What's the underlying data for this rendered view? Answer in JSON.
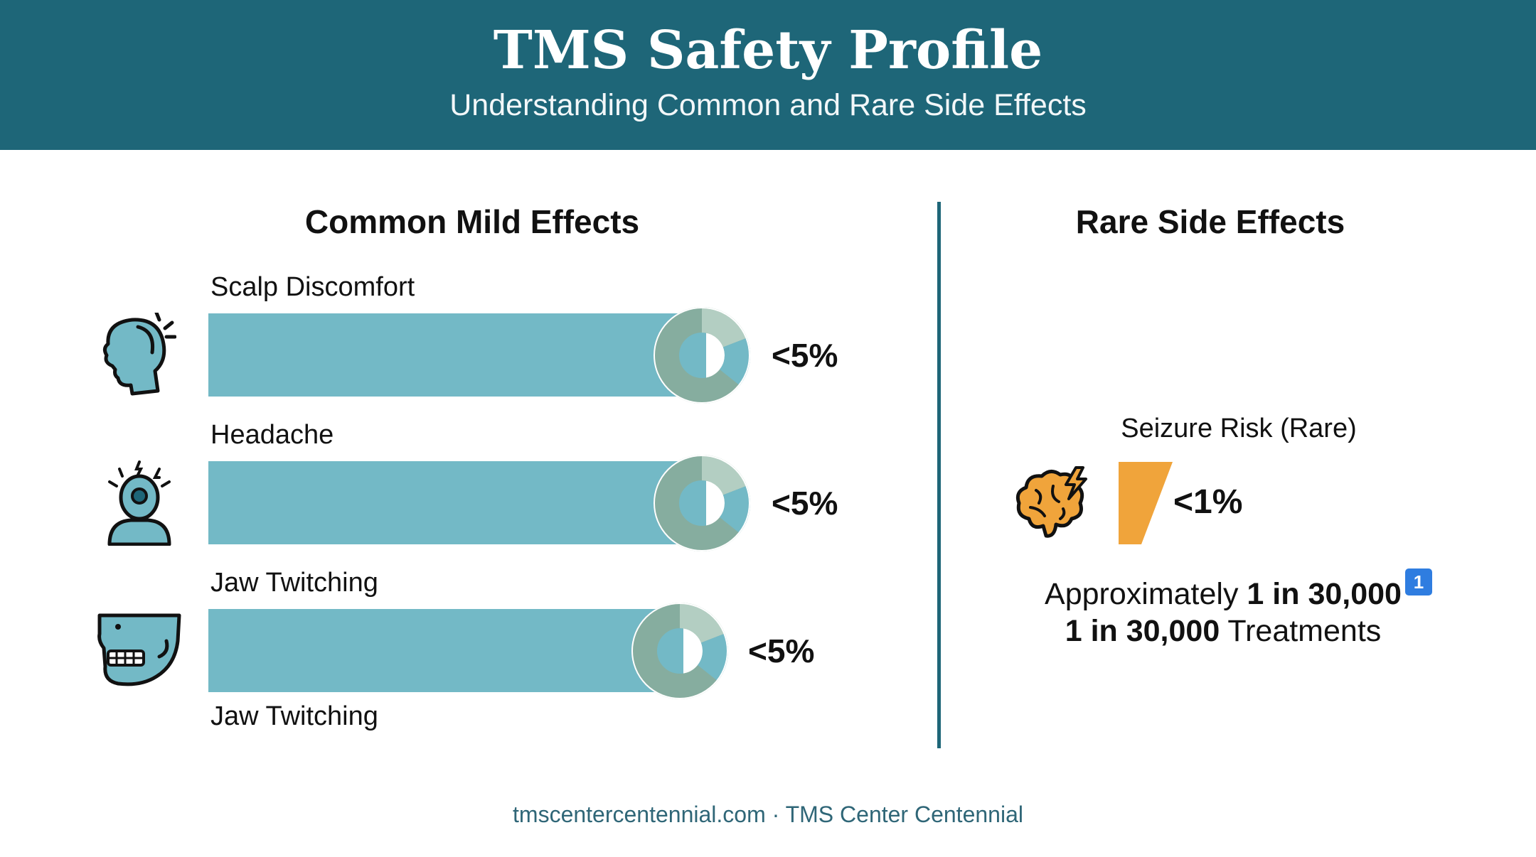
{
  "header": {
    "title": "TMS Safety Profile",
    "subtitle": "Understanding Common and Rare Side Effects"
  },
  "colors": {
    "header_bg": "#1e6678",
    "bar": "#73b9c6",
    "donut_main": "#86ad9f",
    "donut_light": "#b3cec2",
    "donut_accent": "#73b9c6",
    "rare_bar": "#f0a43b",
    "badge": "#2f7de0"
  },
  "chart_data": [
    {
      "type": "bar",
      "title": "Common Mild Effects",
      "categories": [
        "Scalp Discomfort",
        "Headache",
        "Jaw Twitching"
      ],
      "value_labels": [
        "<5%",
        "<5%",
        "<5%"
      ],
      "extra_label": "Jaw Twitching",
      "icons": [
        "head-pain-icon",
        "headache-person-icon",
        "jaw-skull-icon"
      ]
    },
    {
      "type": "bar",
      "title": "Rare Side Effects",
      "categories": [
        "Seizure Risk (Rare)"
      ],
      "value_labels": [
        "<1%"
      ],
      "icons": [
        "brain-lightning-icon"
      ]
    }
  ],
  "rare_note": {
    "line1_prefix": "Approximately ",
    "line1_bold": "1 in 30,000",
    "line2_bold": "1 in 30,000",
    "line2_suffix": " Treatments",
    "badge": "1"
  },
  "footer": "tmscentercentennial.com · TMS Center Centennial"
}
